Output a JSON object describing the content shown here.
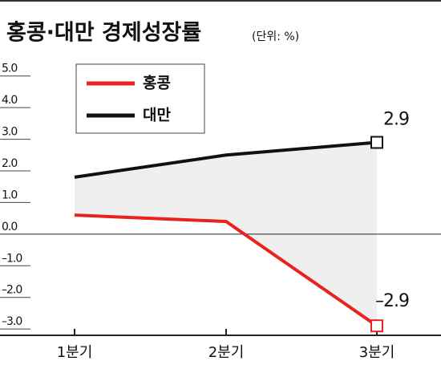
{
  "chart_data": {
    "type": "line",
    "title": "홍콩·대만 경제성장률",
    "unit": "(단위: %)",
    "categories": [
      "1분기",
      "2분기",
      "3분기"
    ],
    "series": [
      {
        "name": "홍콩",
        "color": "#e8231e",
        "values": [
          0.6,
          0.4,
          -2.9
        ],
        "value_labels": [
          null,
          null,
          "–2.9"
        ]
      },
      {
        "name": "대만",
        "color": "#111111",
        "values": [
          1.8,
          2.5,
          2.9
        ]
      }
    ],
    "ylim": [
      -3.2,
      5.5
    ],
    "yticks": [
      {
        "value": 5,
        "label": "5.0"
      },
      {
        "value": 4,
        "label": "4.0"
      },
      {
        "value": 3,
        "label": "3.0"
      },
      {
        "value": 2,
        "label": "2.0"
      },
      {
        "value": 1,
        "label": "1.0"
      },
      {
        "value": 0,
        "label": "0.0"
      },
      {
        "value": -1,
        "label": "–1.0"
      },
      {
        "value": -2,
        "label": "–2.0"
      },
      {
        "value": -3,
        "label": "–3.0"
      }
    ],
    "legend": "top-left"
  }
}
